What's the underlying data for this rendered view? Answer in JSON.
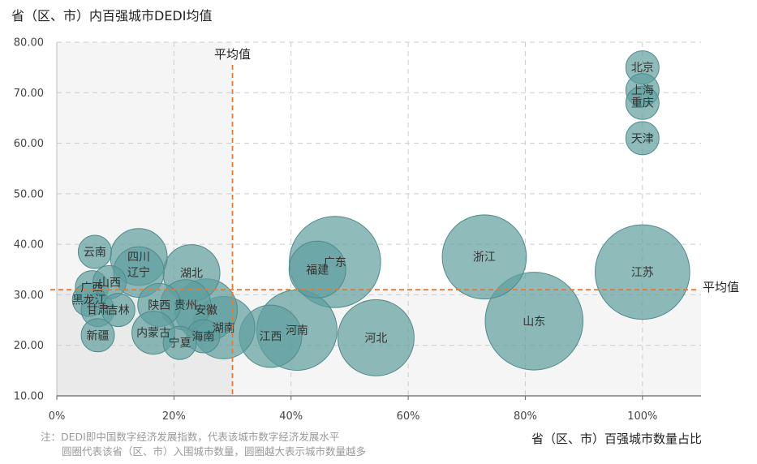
{
  "title": "省（区、市）内百强城市DEDI均值",
  "xlabel": "省（区、市）百强城市数量占比",
  "notes": {
    "line1": "注：DEDI即中国数字经济发展指数，代表该城市数字经济发展水平",
    "line2": "圆圈代表该省（区、市）入围城市数量，圆圈越大表示城市数量越多"
  },
  "colors": {
    "bubble": "#5f9e9e",
    "bubble_stroke": "#4f8a8a",
    "mean_line": "#e87a2e",
    "quadrant_fill": "#e6e6e6",
    "grid": "#cccccc"
  },
  "chart_data": {
    "type": "scatter",
    "xlim": [
      0,
      110
    ],
    "ylim": [
      10,
      80
    ],
    "x_ticks": [
      0,
      20,
      40,
      60,
      80,
      100
    ],
    "x_tick_labels": [
      "0%",
      "20%",
      "40%",
      "60%",
      "80%",
      "100%"
    ],
    "y_ticks": [
      10,
      20,
      30,
      40,
      50,
      60,
      70,
      80
    ],
    "y_tick_labels": [
      "10.00",
      "20.00",
      "30.00",
      "40.00",
      "50.00",
      "60.00",
      "70.00",
      "80.00"
    ],
    "grid": true,
    "mean_x": 30,
    "mean_y": 31,
    "mean_x_label": "平均值",
    "mean_y_label": "平均值",
    "points": [
      {
        "name": "北京",
        "x": 100,
        "y": 75,
        "size": 1
      },
      {
        "name": "上海",
        "x": 100,
        "y": 70.5,
        "size": 1
      },
      {
        "name": "重庆",
        "x": 100,
        "y": 68,
        "size": 1
      },
      {
        "name": "天津",
        "x": 100,
        "y": 61,
        "size": 1
      },
      {
        "name": "江苏",
        "x": 100,
        "y": 34.5,
        "size": 13
      },
      {
        "name": "山东",
        "x": 81.5,
        "y": 24.8,
        "size": 14
      },
      {
        "name": "浙江",
        "x": 73,
        "y": 37.5,
        "size": 10
      },
      {
        "name": "广东",
        "x": 47.5,
        "y": 36.5,
        "size": 12
      },
      {
        "name": "福建",
        "x": 44.5,
        "y": 35,
        "size": 4
      },
      {
        "name": "河北",
        "x": 54.5,
        "y": 21.5,
        "size": 8
      },
      {
        "name": "河南",
        "x": 41,
        "y": 23,
        "size": 9
      },
      {
        "name": "江西",
        "x": 36.5,
        "y": 21.8,
        "size": 5
      },
      {
        "name": "湖南",
        "x": 28.5,
        "y": 23.5,
        "size": 5
      },
      {
        "name": "湖北",
        "x": 23,
        "y": 34.3,
        "size": 4
      },
      {
        "name": "安徽",
        "x": 25.5,
        "y": 27,
        "size": 5
      },
      {
        "name": "贵州",
        "x": 22,
        "y": 28,
        "size": 3
      },
      {
        "name": "陕西",
        "x": 17.5,
        "y": 28,
        "size": 2
      },
      {
        "name": "四川",
        "x": 14,
        "y": 37.5,
        "size": 4
      },
      {
        "name": "辽宁",
        "x": 14,
        "y": 34.5,
        "size": 3
      },
      {
        "name": "云南",
        "x": 6.5,
        "y": 38.5,
        "size": 1
      },
      {
        "name": "广西",
        "x": 6,
        "y": 31.5,
        "size": 1
      },
      {
        "name": "山西",
        "x": 9,
        "y": 32.5,
        "size": 1
      },
      {
        "name": "黑龙江",
        "x": 5.5,
        "y": 29,
        "size": 1
      },
      {
        "name": "甘肃",
        "x": 7,
        "y": 27,
        "size": 1
      },
      {
        "name": "吉林",
        "x": 10.5,
        "y": 27,
        "size": 1
      },
      {
        "name": "新疆",
        "x": 7,
        "y": 22,
        "size": 1
      },
      {
        "name": "内蒙古",
        "x": 16.5,
        "y": 22.5,
        "size": 2
      },
      {
        "name": "海南",
        "x": 25,
        "y": 21.8,
        "size": 1
      },
      {
        "name": "宁夏",
        "x": 21,
        "y": 20.5,
        "size": 1
      }
    ]
  }
}
